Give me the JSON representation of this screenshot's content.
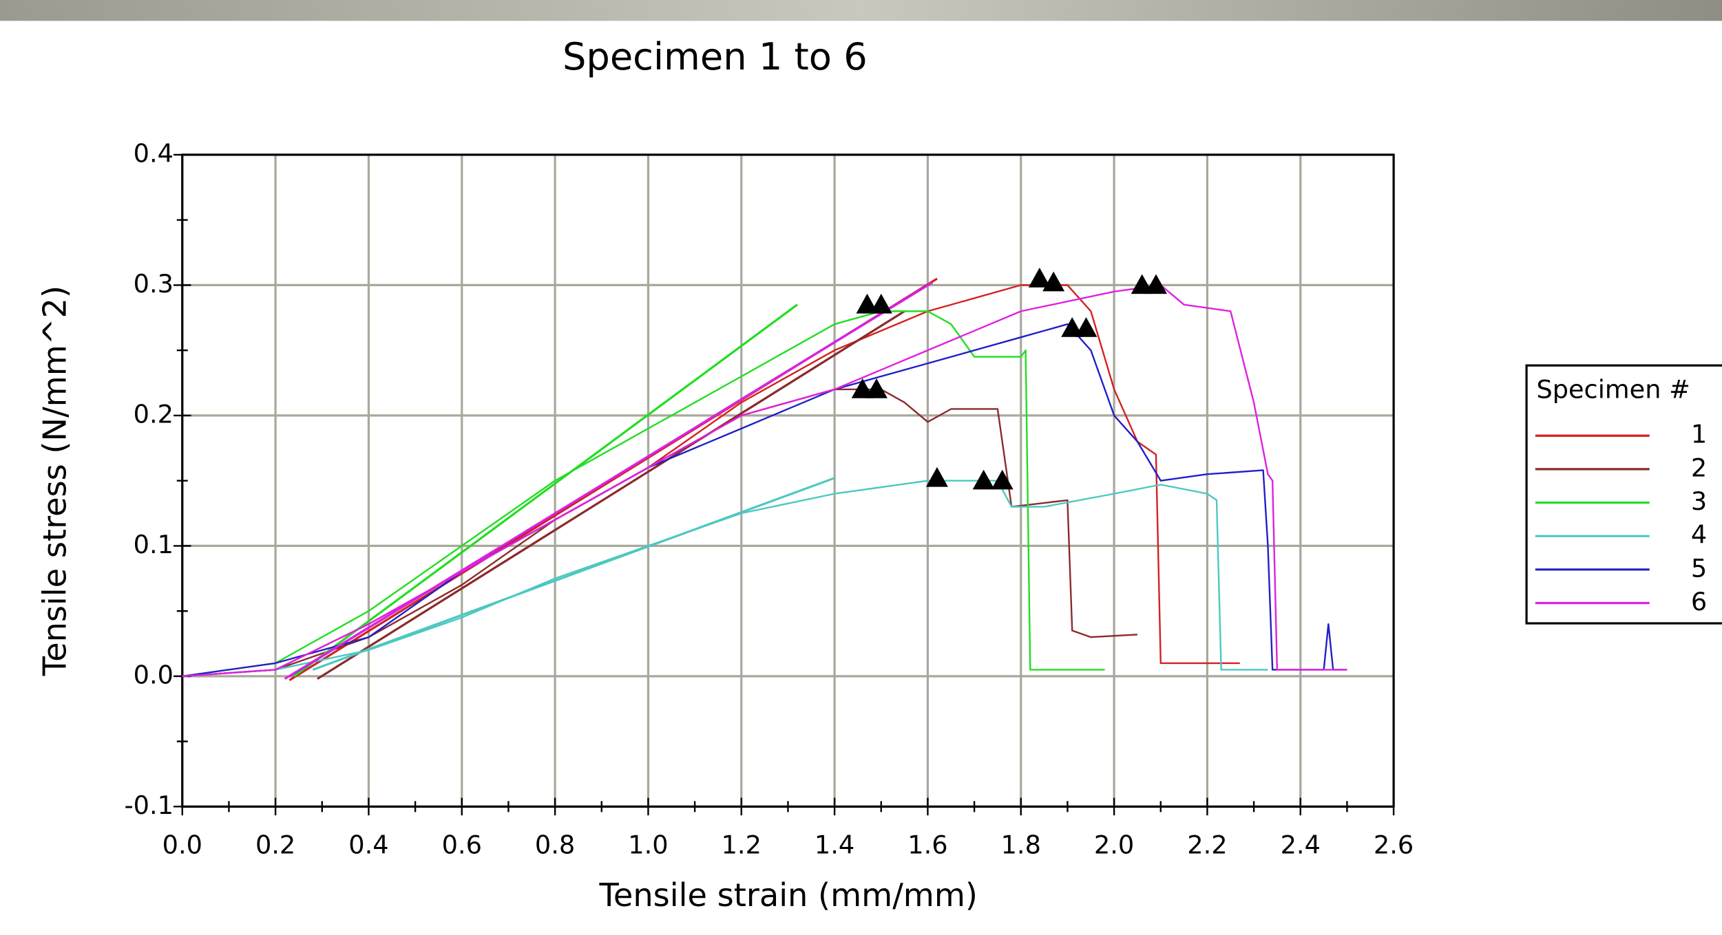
{
  "chart_data": {
    "type": "line",
    "title": "Specimen 1 to 6",
    "x_label": "Tensile strain (mm/mm)",
    "y_label": "Tensile stress (N/mm^2)",
    "xlim": [
      0,
      2.6
    ],
    "ylim": [
      -0.1,
      0.4
    ],
    "xticks": [
      {
        "value": 0,
        "label": "0.0"
      },
      0.2,
      0.4,
      0.6,
      0.8,
      {
        "value": 1,
        "label": "1.0"
      },
      1.2,
      1.4,
      1.6,
      1.8,
      {
        "value": 2,
        "label": "2.0"
      },
      2.2,
      2.4,
      2.6
    ],
    "minor_xticks": [
      0.1,
      0.3,
      0.5,
      0.7,
      0.9,
      1.1,
      1.3,
      1.5,
      1.7,
      1.9,
      2.1,
      2.3,
      2.5
    ],
    "yticks": [
      {
        "value": -0.1,
        "label": "-0.1"
      },
      {
        "value": 0,
        "label": "0.0"
      },
      0.1,
      0.2,
      0.3,
      0.4
    ],
    "minor_yticks": [
      -0.05,
      0.05,
      0.15,
      0.25,
      0.35
    ],
    "grid": true,
    "legend_title": "Specimen #",
    "legend_position": "right",
    "series": [
      {
        "name": "1",
        "color": "#d42020",
        "x": [
          0,
          0.2,
          0.4,
          0.6,
          0.8,
          1.0,
          1.2,
          1.4,
          1.6,
          1.8,
          1.9,
          1.95,
          2.0,
          2.05,
          2.09,
          2.1,
          2.27
        ],
        "values": [
          0,
          0.005,
          0.04,
          0.08,
          0.12,
          0.16,
          0.21,
          0.25,
          0.28,
          0.3,
          0.3,
          0.28,
          0.22,
          0.18,
          0.17,
          0.01,
          0.01
        ],
        "fit_x": [
          0.23,
          1.62
        ],
        "fit_values": [
          -0.003,
          0.305
        ]
      },
      {
        "name": "2",
        "color": "#8b2a2a",
        "x": [
          0,
          0.2,
          0.4,
          0.6,
          0.8,
          1.0,
          1.2,
          1.4,
          1.5,
          1.55,
          1.6,
          1.65,
          1.75,
          1.78,
          1.9,
          1.91,
          1.95,
          2.05
        ],
        "values": [
          0,
          0.005,
          0.03,
          0.07,
          0.12,
          0.16,
          0.2,
          0.22,
          0.22,
          0.21,
          0.195,
          0.205,
          0.205,
          0.13,
          0.135,
          0.035,
          0.03,
          0.032
        ],
        "fit_x": [
          0.29,
          1.55
        ],
        "fit_values": [
          -0.002,
          0.28
        ]
      },
      {
        "name": "3",
        "color": "#22dd22",
        "x": [
          0,
          0.2,
          0.4,
          0.6,
          0.8,
          1.0,
          1.2,
          1.4,
          1.5,
          1.6,
          1.65,
          1.7,
          1.8,
          1.81,
          1.82,
          1.98
        ],
        "values": [
          0,
          0.01,
          0.05,
          0.1,
          0.15,
          0.19,
          0.23,
          0.27,
          0.28,
          0.28,
          0.27,
          0.245,
          0.245,
          0.25,
          0.005,
          0.005
        ],
        "fit_x": [
          0.24,
          1.32
        ],
        "fit_values": [
          0,
          0.285
        ]
      },
      {
        "name": "4",
        "color": "#4cc8c0",
        "x": [
          0,
          0.2,
          0.4,
          0.6,
          0.8,
          1.0,
          1.2,
          1.4,
          1.6,
          1.75,
          1.78,
          1.85,
          2.0,
          2.1,
          2.2,
          2.22,
          2.23,
          2.33
        ],
        "values": [
          0,
          0.005,
          0.02,
          0.045,
          0.075,
          0.1,
          0.125,
          0.14,
          0.15,
          0.15,
          0.13,
          0.13,
          0.14,
          0.147,
          0.14,
          0.135,
          0.005,
          0.005
        ],
        "fit_x": [
          0.28,
          1.4
        ],
        "fit_values": [
          0.005,
          0.152
        ]
      },
      {
        "name": "5",
        "color": "#2020c8",
        "x": [
          0,
          0.2,
          0.4,
          0.6,
          0.8,
          1.0,
          1.2,
          1.4,
          1.6,
          1.8,
          1.9,
          1.95,
          2.0,
          2.05,
          2.1,
          2.2,
          2.32,
          2.33,
          2.34,
          2.45,
          2.46,
          2.47,
          2.5
        ],
        "values": [
          0,
          0.01,
          0.03,
          0.08,
          0.12,
          0.16,
          0.19,
          0.22,
          0.24,
          0.26,
          0.27,
          0.25,
          0.2,
          0.18,
          0.15,
          0.155,
          0.158,
          0.1,
          0.005,
          0.005,
          0.04,
          0.005,
          0.005
        ],
        "fit_x": [
          0.23,
          1.6
        ],
        "fit_values": [
          0,
          0.3
        ]
      },
      {
        "name": "6",
        "color": "#e020e0",
        "x": [
          0,
          0.2,
          0.4,
          0.6,
          0.8,
          1.0,
          1.2,
          1.4,
          1.6,
          1.8,
          2.0,
          2.1,
          2.15,
          2.25,
          2.3,
          2.33,
          2.34,
          2.35,
          2.5
        ],
        "values": [
          0,
          0.005,
          0.04,
          0.08,
          0.12,
          0.16,
          0.2,
          0.22,
          0.25,
          0.28,
          0.295,
          0.3,
          0.285,
          0.28,
          0.21,
          0.155,
          0.15,
          0.005,
          0.005
        ],
        "fit_x": [
          0.22,
          1.61
        ],
        "fit_values": [
          -0.002,
          0.302
        ]
      }
    ],
    "markers": {
      "color": "#000000",
      "x": [
        1.47,
        1.5,
        1.84,
        1.87,
        1.46,
        1.49,
        1.62,
        1.72,
        1.76,
        1.91,
        1.94,
        2.06,
        2.09
      ],
      "values": [
        0.285,
        0.285,
        0.305,
        0.302,
        0.22,
        0.22,
        0.152,
        0.15,
        0.15,
        0.267,
        0.267,
        0.3,
        0.3
      ]
    }
  }
}
